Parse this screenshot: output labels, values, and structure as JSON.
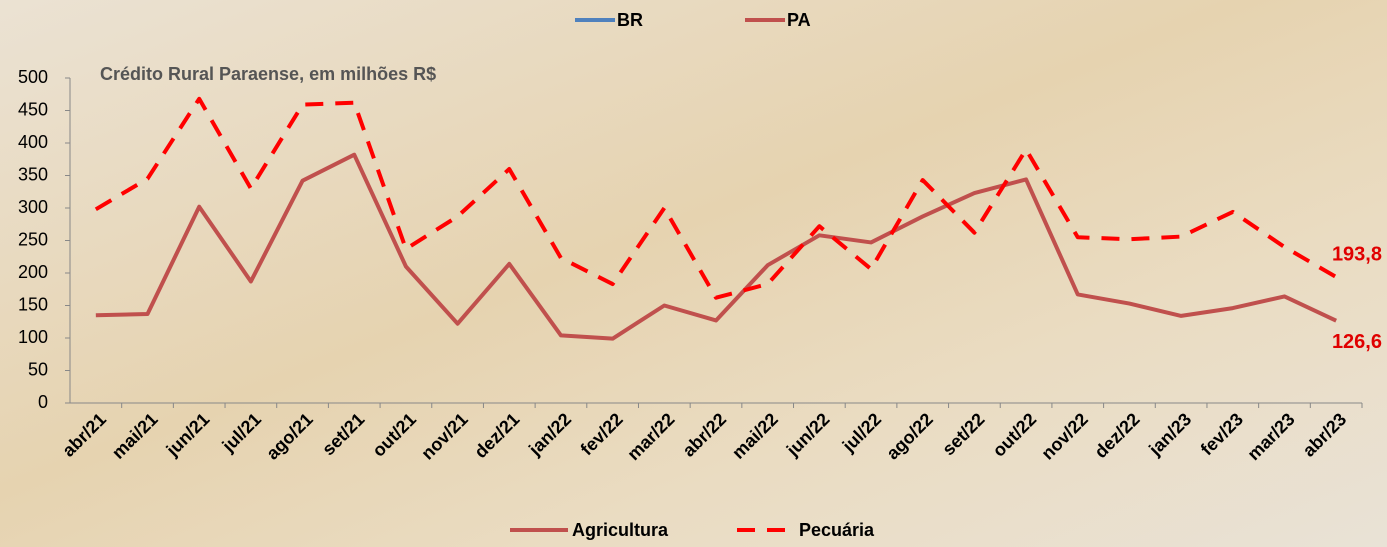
{
  "chart_data": {
    "type": "line",
    "title": "Crédito Rural Paraense, em milhões R$",
    "top_legend": [
      {
        "name": "BR",
        "color": "#4f81bd"
      },
      {
        "name": "PA",
        "color": "#c0504d"
      }
    ],
    "categories": [
      "abr/21",
      "mai/21",
      "jun/21",
      "jul/21",
      "ago/21",
      "set/21",
      "out/21",
      "nov/21",
      "dez/21",
      "jan/22",
      "fev/22",
      "mar/22",
      "abr/22",
      "mai/22",
      "jun/22",
      "jul/22",
      "ago/22",
      "set/22",
      "out/22",
      "nov/22",
      "dez/22",
      "jan/23",
      "fev/23",
      "mar/23",
      "abr/23"
    ],
    "series": [
      {
        "name": "Agricultura",
        "color": "#c0504d",
        "dash": false,
        "values": [
          135,
          137,
          302,
          187,
          342,
          382,
          210,
          122,
          214,
          104,
          99,
          150,
          127,
          212,
          258,
          247,
          287,
          323,
          344,
          167,
          153,
          134,
          146,
          164,
          126.6
        ],
        "value_labels": [
          null,
          null,
          null,
          null,
          null,
          null,
          null,
          null,
          null,
          null,
          null,
          null,
          null,
          null,
          null,
          null,
          null,
          null,
          null,
          null,
          null,
          null,
          null,
          null,
          "126,6"
        ]
      },
      {
        "name": "Pecuária",
        "color": "#ff0000",
        "dash": true,
        "values": [
          298,
          345,
          468,
          330,
          459,
          462,
          237,
          287,
          360,
          223,
          183,
          300,
          162,
          183,
          272,
          206,
          343,
          262,
          390,
          255,
          252,
          256,
          294,
          240,
          193.8
        ],
        "value_labels": [
          null,
          null,
          null,
          null,
          null,
          null,
          null,
          null,
          null,
          null,
          null,
          null,
          null,
          null,
          null,
          null,
          null,
          null,
          null,
          null,
          null,
          null,
          null,
          null,
          "193,8"
        ]
      }
    ],
    "ylim": [
      0,
      500
    ],
    "yticks": [
      0,
      50,
      100,
      150,
      200,
      250,
      300,
      350,
      400,
      450,
      500
    ]
  }
}
